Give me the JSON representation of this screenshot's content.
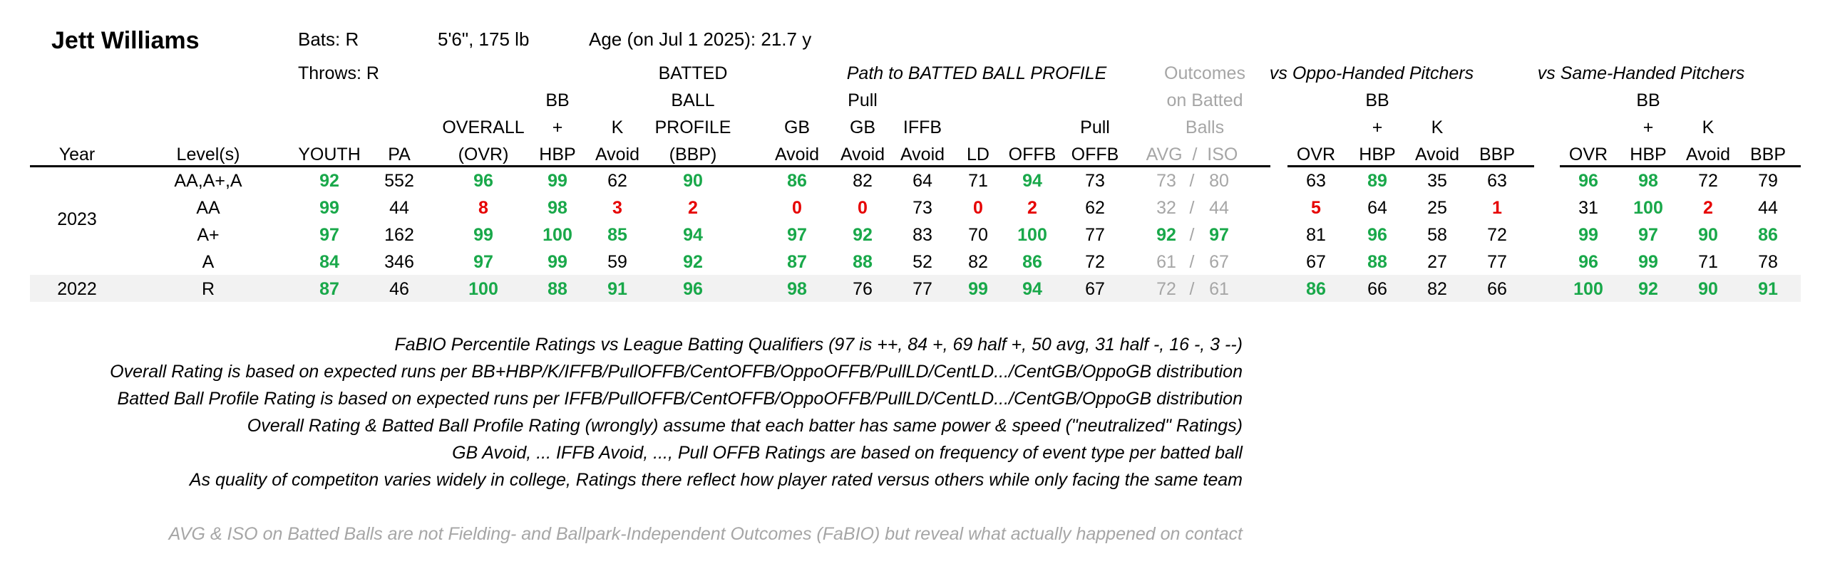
{
  "player": {
    "name": "Jett Williams",
    "bats": "Bats: R",
    "throws": "Throws: R",
    "size": "5'6\", 175 lb",
    "age": "Age (on Jul 1 2025): 21.7 y"
  },
  "group_headers": {
    "path": "Path to BATTED BALL PROFILE",
    "outcomes": [
      "Outcomes",
      "on Batted",
      "Balls"
    ],
    "oppo": "vs Oppo-Handed Pitchers",
    "same": "vs Same-Handed Pitchers"
  },
  "columns": {
    "year": "Year",
    "levels": "Level(s)",
    "youth": "YOUTH",
    "pa": "PA",
    "overall": [
      "OVERALL",
      "(OVR)"
    ],
    "bbhbp": [
      "BB",
      "+",
      "HBP"
    ],
    "kavoid": [
      "K",
      "Avoid"
    ],
    "bbp": [
      "BATTED",
      "BALL",
      "PROFILE",
      "(BBP)"
    ],
    "gbavoid": [
      "GB",
      "Avoid"
    ],
    "pullgb": [
      "Pull",
      "GB",
      "Avoid"
    ],
    "iffb": [
      "IFFB",
      "Avoid"
    ],
    "ld": "LD",
    "offb": "OFFB",
    "pulloffb": [
      "Pull",
      "OFFB"
    ],
    "avgiso": "AVG  /  ISO",
    "ovr": "OVR",
    "hbp": "HBP",
    "plus": "+",
    "bb": "BB",
    "k": "K",
    "avoid": "Avoid",
    "bbp_short": "BBP"
  },
  "rows": [
    {
      "year": "",
      "level": "AA,A+,A",
      "youth": {
        "v": "92",
        "c": "g"
      },
      "pa": "552",
      "ovr": {
        "v": "96",
        "c": "g"
      },
      "bbhbp": {
        "v": "99",
        "c": "g"
      },
      "kavoid": {
        "v": "62",
        "c": ""
      },
      "bbp": {
        "v": "90",
        "c": "g"
      },
      "gbavoid": {
        "v": "86",
        "c": "g"
      },
      "pullgb": {
        "v": "82",
        "c": ""
      },
      "iffb": {
        "v": "64",
        "c": ""
      },
      "ld": {
        "v": "71",
        "c": ""
      },
      "offb": {
        "v": "94",
        "c": "g"
      },
      "pulloffb": {
        "v": "73",
        "c": ""
      },
      "avgiso": {
        "avg": "73",
        "iso": "80",
        "c": "gray"
      },
      "o_ovr": {
        "v": "63",
        "c": ""
      },
      "o_bb": {
        "v": "89",
        "c": "g"
      },
      "o_k": {
        "v": "35",
        "c": ""
      },
      "o_bbp": {
        "v": "63",
        "c": ""
      },
      "s_ovr": {
        "v": "96",
        "c": "g"
      },
      "s_bb": {
        "v": "98",
        "c": "g"
      },
      "s_k": {
        "v": "72",
        "c": ""
      },
      "s_bbp": {
        "v": "79",
        "c": ""
      }
    },
    {
      "year": "2023",
      "level": "AA",
      "youth": {
        "v": "99",
        "c": "g"
      },
      "pa": "44",
      "ovr": {
        "v": "8",
        "c": "r"
      },
      "bbhbp": {
        "v": "98",
        "c": "g"
      },
      "kavoid": {
        "v": "3",
        "c": "r"
      },
      "bbp": {
        "v": "2",
        "c": "r"
      },
      "gbavoid": {
        "v": "0",
        "c": "r"
      },
      "pullgb": {
        "v": "0",
        "c": "r"
      },
      "iffb": {
        "v": "73",
        "c": ""
      },
      "ld": {
        "v": "0",
        "c": "r"
      },
      "offb": {
        "v": "2",
        "c": "r"
      },
      "pulloffb": {
        "v": "62",
        "c": ""
      },
      "avgiso": {
        "avg": "32",
        "iso": "44",
        "c": "gray"
      },
      "o_ovr": {
        "v": "5",
        "c": "r"
      },
      "o_bb": {
        "v": "64",
        "c": ""
      },
      "o_k": {
        "v": "25",
        "c": ""
      },
      "o_bbp": {
        "v": "1",
        "c": "r"
      },
      "s_ovr": {
        "v": "31",
        "c": ""
      },
      "s_bb": {
        "v": "100",
        "c": "g"
      },
      "s_k": {
        "v": "2",
        "c": "r"
      },
      "s_bbp": {
        "v": "44",
        "c": ""
      }
    },
    {
      "year": "",
      "level": "A+",
      "youth": {
        "v": "97",
        "c": "g"
      },
      "pa": "162",
      "ovr": {
        "v": "99",
        "c": "g"
      },
      "bbhbp": {
        "v": "100",
        "c": "g"
      },
      "kavoid": {
        "v": "85",
        "c": "g"
      },
      "bbp": {
        "v": "94",
        "c": "g"
      },
      "gbavoid": {
        "v": "97",
        "c": "g"
      },
      "pullgb": {
        "v": "92",
        "c": "g"
      },
      "iffb": {
        "v": "83",
        "c": ""
      },
      "ld": {
        "v": "70",
        "c": ""
      },
      "offb": {
        "v": "100",
        "c": "g"
      },
      "pulloffb": {
        "v": "77",
        "c": ""
      },
      "avgiso": {
        "avg": "92",
        "iso": "97",
        "c": "g"
      },
      "o_ovr": {
        "v": "81",
        "c": ""
      },
      "o_bb": {
        "v": "96",
        "c": "g"
      },
      "o_k": {
        "v": "58",
        "c": ""
      },
      "o_bbp": {
        "v": "72",
        "c": ""
      },
      "s_ovr": {
        "v": "99",
        "c": "g"
      },
      "s_bb": {
        "v": "97",
        "c": "g"
      },
      "s_k": {
        "v": "90",
        "c": "g"
      },
      "s_bbp": {
        "v": "86",
        "c": "g"
      }
    },
    {
      "year": "",
      "level": "A",
      "youth": {
        "v": "84",
        "c": "g"
      },
      "pa": "346",
      "ovr": {
        "v": "97",
        "c": "g"
      },
      "bbhbp": {
        "v": "99",
        "c": "g"
      },
      "kavoid": {
        "v": "59",
        "c": ""
      },
      "bbp": {
        "v": "92",
        "c": "g"
      },
      "gbavoid": {
        "v": "87",
        "c": "g"
      },
      "pullgb": {
        "v": "88",
        "c": "g"
      },
      "iffb": {
        "v": "52",
        "c": ""
      },
      "ld": {
        "v": "82",
        "c": ""
      },
      "offb": {
        "v": "86",
        "c": "g"
      },
      "pulloffb": {
        "v": "72",
        "c": ""
      },
      "avgiso": {
        "avg": "61",
        "iso": "67",
        "c": "gray"
      },
      "o_ovr": {
        "v": "67",
        "c": ""
      },
      "o_bb": {
        "v": "88",
        "c": "g"
      },
      "o_k": {
        "v": "27",
        "c": ""
      },
      "o_bbp": {
        "v": "77",
        "c": ""
      },
      "s_ovr": {
        "v": "96",
        "c": "g"
      },
      "s_bb": {
        "v": "99",
        "c": "g"
      },
      "s_k": {
        "v": "71",
        "c": ""
      },
      "s_bbp": {
        "v": "78",
        "c": ""
      }
    },
    {
      "year": "2022",
      "level": "R",
      "youth": {
        "v": "87",
        "c": "g"
      },
      "pa": "46",
      "ovr": {
        "v": "100",
        "c": "g"
      },
      "bbhbp": {
        "v": "88",
        "c": "g"
      },
      "kavoid": {
        "v": "91",
        "c": "g"
      },
      "bbp": {
        "v": "96",
        "c": "g"
      },
      "gbavoid": {
        "v": "98",
        "c": "g"
      },
      "pullgb": {
        "v": "76",
        "c": ""
      },
      "iffb": {
        "v": "77",
        "c": ""
      },
      "ld": {
        "v": "99",
        "c": "g"
      },
      "offb": {
        "v": "94",
        "c": "g"
      },
      "pulloffb": {
        "v": "67",
        "c": ""
      },
      "avgiso": {
        "avg": "72",
        "iso": "61",
        "c": "gray"
      },
      "o_ovr": {
        "v": "86",
        "c": "g"
      },
      "o_bb": {
        "v": "66",
        "c": ""
      },
      "o_k": {
        "v": "82",
        "c": ""
      },
      "o_bbp": {
        "v": "66",
        "c": ""
      },
      "s_ovr": {
        "v": "100",
        "c": "g"
      },
      "s_bb": {
        "v": "92",
        "c": "g"
      },
      "s_k": {
        "v": "90",
        "c": "g"
      },
      "s_bbp": {
        "v": "91",
        "c": "g"
      }
    }
  ],
  "notes": [
    "FaBIO Percentile Ratings vs League Batting Qualifiers (97 is ++, 84 +, 69 half +, 50 avg, 31 half -, 16 -, 3 --)",
    "Overall Rating is based on expected runs per BB+HBP/K/IFFB/PullOFFB/CentOFFB/OppoOFFB/PullLD/CentLD.../CentGB/OppoGB distribution",
    "Batted Ball Profile Rating is based on expected runs per IFFB/PullOFFB/CentOFFB/OppoOFFB/PullLD/CentLD.../CentGB/OppoGB distribution",
    "Overall Rating & Batted Ball Profile Rating (wrongly) assume that each batter has same power & speed (\"neutralized\" Ratings)",
    "GB Avoid, ... IFFB Avoid, ..., Pull OFFB Ratings are based on frequency of event type per batted ball",
    "As quality of competiton varies widely in college, Ratings there reflect how player rated versus others while only facing the same team"
  ],
  "footnote": "AVG & ISO on Batted Balls are not Fielding- and Ballpark-Independent Outcomes (FaBIO) but reveal what actually happened on contact",
  "colors": {
    "good": "#19a84a",
    "bad": "#e60000",
    "muted": "#a6a6a6",
    "shade": "#f2f2f2"
  }
}
